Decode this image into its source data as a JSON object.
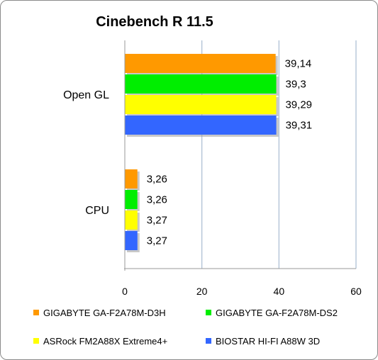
{
  "chart_data": {
    "type": "bar",
    "orientation": "horizontal",
    "title": "Cinebench R 11.5",
    "categories": [
      "Open GL",
      "CPU"
    ],
    "series": [
      {
        "name": "GIGABYTE GA-F2A78M-D3H",
        "color": "#ff9900",
        "values": [
          39.14,
          3.26
        ],
        "labels": [
          "39,14",
          "3,26"
        ]
      },
      {
        "name": "GIGABYTE GA-F2A78M-DS2",
        "color": "#00ee00",
        "values": [
          39.3,
          3.26
        ],
        "labels": [
          "39,3",
          "3,26"
        ]
      },
      {
        "name": "ASRock FM2A88X Extreme4+",
        "color": "#ffff00",
        "values": [
          39.29,
          3.27
        ],
        "labels": [
          "39,29",
          "3,27"
        ]
      },
      {
        "name": "BIOSTAR HI-FI A88W 3D",
        "color": "#3366ff",
        "values": [
          39.31,
          3.27
        ],
        "labels": [
          "39,31",
          "3,27"
        ]
      }
    ],
    "xlim": [
      0,
      60
    ],
    "xticks": [
      0,
      20,
      40,
      60
    ],
    "grid": true,
    "legend_position": "bottom"
  }
}
